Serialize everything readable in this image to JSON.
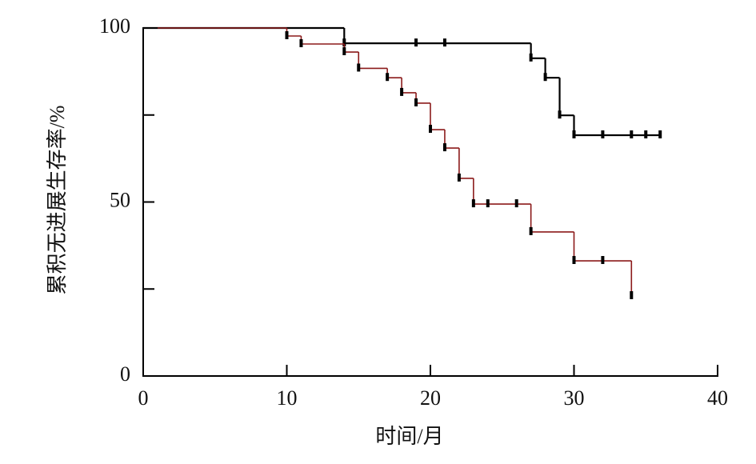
{
  "chart_data": {
    "type": "km",
    "xlabel": "时间/月",
    "ylabel": "累积无进展生存率/%",
    "xlim": [
      0,
      40
    ],
    "xticks": [
      0,
      10,
      20,
      30,
      40
    ],
    "ylim": [
      0,
      100
    ],
    "yticks": [
      0,
      50,
      100
    ],
    "yminorticks": [
      25,
      75
    ],
    "censor_color": "#000000",
    "series": [
      {
        "color": "#000000",
        "x": [
          0,
          14,
          27,
          28,
          29,
          30,
          36
        ],
        "values": [
          100,
          95.6,
          91.3,
          85.7,
          74.9,
          69.2,
          69.2
        ],
        "censor_x": [
          14,
          19,
          21,
          27,
          28,
          29,
          30,
          32,
          34,
          35,
          36
        ],
        "censor_values": [
          95.6,
          95.6,
          95.6,
          91.3,
          85.7,
          74.9,
          69.2,
          69.2,
          69.2,
          69.2,
          69.2
        ]
      },
      {
        "color": "#8b1a1a",
        "x": [
          1,
          10,
          11,
          14,
          15,
          17,
          18,
          19,
          20,
          21,
          22,
          23,
          27,
          30,
          34
        ],
        "values": [
          100,
          97.7,
          95.4,
          93.1,
          88.4,
          85.7,
          81.4,
          78.4,
          70.8,
          65.5,
          56.8,
          49.4,
          41.4,
          33.1,
          23
        ],
        "censor_x": [
          10,
          11,
          14,
          15,
          17,
          18,
          19,
          20,
          21,
          22,
          23,
          24,
          26,
          27,
          30,
          32,
          34
        ],
        "censor_values": [
          97.7,
          95.4,
          93.1,
          88.4,
          85.7,
          81.4,
          78.4,
          70.8,
          65.5,
          56.8,
          49.4,
          49.4,
          49.4,
          41.4,
          33.1,
          33.1,
          23
        ]
      }
    ]
  }
}
